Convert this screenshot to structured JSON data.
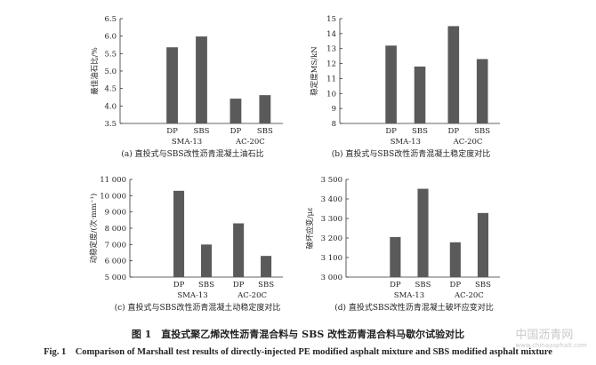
{
  "chart_data": [
    {
      "type": "bar",
      "id": "a",
      "categories": [
        "DP",
        "SBS",
        "DP",
        "SBS"
      ],
      "groups": [
        "SMA-13",
        "AC-20C"
      ],
      "values": [
        5.68,
        5.99,
        4.21,
        4.31
      ],
      "ylabel": "最佳油石比/%",
      "ylim": [
        3.5,
        6.5
      ],
      "yticks": [
        "3.5",
        "4.0",
        "4.5",
        "5.0",
        "5.5",
        "6.0",
        "6.5"
      ],
      "caption": "(a) 直投式与SBS改性沥青混凝土油石比"
    },
    {
      "type": "bar",
      "id": "b",
      "categories": [
        "DP",
        "SBS",
        "DP",
        "SBS"
      ],
      "groups": [
        "SMA-13",
        "AC-20C"
      ],
      "values": [
        13.2,
        11.8,
        14.5,
        12.3
      ],
      "ylabel": "稳定度MS/kN",
      "ylim": [
        8,
        15
      ],
      "yticks": [
        "8",
        "9",
        "10",
        "11",
        "12",
        "13",
        "14",
        "15"
      ],
      "caption": "(b) 直投式与SBS改性沥青混凝土稳定度对比"
    },
    {
      "type": "bar",
      "id": "c",
      "categories": [
        "DP",
        "SBS",
        "DP",
        "SBS"
      ],
      "groups": [
        "SMA-13",
        "AC-20C"
      ],
      "values": [
        10300,
        7000,
        8300,
        6300
      ],
      "ylabel": "动稳定度/(次·mm⁻¹)",
      "ylim": [
        5000,
        11000
      ],
      "yticks": [
        "5 000",
        "6 000",
        "7 000",
        "8 000",
        "9 000",
        "10 000",
        "11 000"
      ],
      "caption": "(c) 直投式与SBS改性沥青混凝土动稳定度对比"
    },
    {
      "type": "bar",
      "id": "d",
      "categories": [
        "DP",
        "SBS",
        "DP",
        "SBS"
      ],
      "groups": [
        "SMA-13",
        "AC-20C"
      ],
      "values": [
        3205,
        3452,
        3178,
        3328
      ],
      "ylabel": "破坏应变/με",
      "ylim": [
        3000,
        3500
      ],
      "yticks": [
        "3 000",
        "3 100",
        "3 200",
        "3 300",
        "3 400",
        "3 500"
      ],
      "caption": "(d) 直投式SBS改性沥青混凝土破坏应变对比"
    }
  ],
  "figure_title_cn": "图 1　直投式聚乙烯改性沥青混合料与 SBS 改性沥青混合料马歇尔试验对比",
  "figure_title_en": "Fig. 1　Comparison of Marshall test results of directly-injected PE modified asphalt mixture and SBS modified asphalt mixture",
  "watermark": "中国沥青网",
  "watermark_url": "www.chinaasphalt.com",
  "bar_color": "#5a5a5a"
}
